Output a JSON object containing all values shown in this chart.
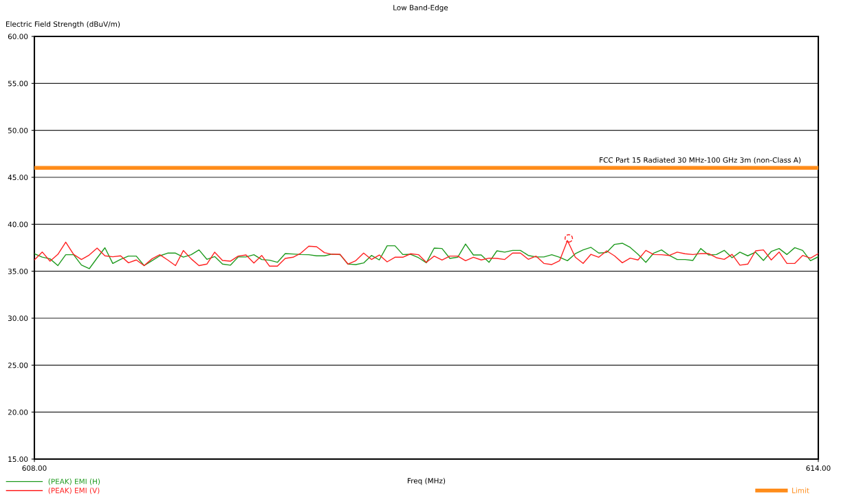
{
  "chart_data": {
    "type": "line",
    "title": "Low Band-Edge",
    "xlabel": "Freq (MHz)",
    "ylabel": "Electric Field Strength (dBuV/m)",
    "x": [
      608.0,
      608.06,
      608.12,
      608.18,
      608.24,
      608.3,
      608.36,
      608.42,
      608.48,
      608.54,
      608.6,
      608.66,
      608.72,
      608.78,
      608.84,
      608.9,
      608.96,
      609.02,
      609.08,
      609.14,
      609.2,
      609.26,
      609.32,
      609.38,
      609.44,
      609.5,
      609.56,
      609.62,
      609.68,
      609.74,
      609.8,
      609.86,
      609.92,
      609.98,
      610.04,
      610.1,
      610.16,
      610.22,
      610.28,
      610.34,
      610.4,
      610.46,
      610.52,
      610.58,
      610.64,
      610.7,
      610.76,
      610.82,
      610.88,
      610.94,
      611.0,
      611.06,
      611.12,
      611.18,
      611.24,
      611.3,
      611.36,
      611.42,
      611.48,
      611.54,
      611.6,
      611.66,
      611.72,
      611.78,
      611.84,
      611.9,
      611.96,
      612.02,
      612.08,
      612.14,
      612.2,
      612.26,
      612.32,
      612.38,
      612.44,
      612.5,
      612.56,
      612.62,
      612.68,
      612.74,
      612.8,
      612.86,
      612.92,
      612.98,
      613.04,
      613.1,
      613.16,
      613.22,
      613.28,
      613.34,
      613.4,
      613.46,
      613.52,
      613.58,
      613.64,
      613.7,
      613.76,
      613.82,
      613.88,
      613.94,
      614.0
    ],
    "series": [
      {
        "name": "(PEAK) EMI (H)",
        "color": "#1e9a1e",
        "values": [
          36.86,
          36.5,
          36.32,
          35.6,
          36.76,
          36.76,
          35.66,
          35.27,
          36.4,
          37.5,
          35.83,
          36.27,
          36.61,
          36.61,
          35.6,
          36.12,
          36.64,
          36.93,
          36.93,
          36.5,
          36.76,
          37.27,
          36.27,
          36.56,
          35.76,
          35.64,
          36.52,
          36.52,
          36.76,
          36.25,
          36.17,
          35.95,
          36.88,
          36.83,
          36.78,
          36.76,
          36.64,
          36.64,
          36.83,
          36.76,
          35.76,
          35.71,
          35.88,
          36.68,
          36.2,
          37.71,
          37.71,
          36.78,
          36.8,
          36.44,
          35.9,
          37.46,
          37.42,
          36.37,
          36.49,
          37.9,
          36.73,
          36.73,
          35.95,
          37.17,
          37.03,
          37.22,
          37.22,
          36.68,
          36.52,
          36.52,
          36.76,
          36.49,
          36.12,
          36.86,
          37.27,
          37.54,
          36.93,
          37.0,
          37.86,
          37.98,
          37.54,
          36.8,
          35.95,
          36.93,
          37.27,
          36.68,
          36.25,
          36.25,
          36.15,
          37.42,
          36.73,
          36.78,
          37.22,
          36.44,
          37.03,
          36.64,
          37.03,
          36.15,
          37.1,
          37.42,
          36.78,
          37.51,
          37.22,
          36.12,
          36.54
        ]
      },
      {
        "name": "(PEAK) EMI (V)",
        "color": "#ff2020",
        "values": [
          36.2,
          37.05,
          36.07,
          36.8,
          38.1,
          36.8,
          36.25,
          36.73,
          37.46,
          36.64,
          36.54,
          36.64,
          35.9,
          36.2,
          35.6,
          36.32,
          36.76,
          36.2,
          35.6,
          37.2,
          36.32,
          35.6,
          35.76,
          37.03,
          36.15,
          36.07,
          36.61,
          36.73,
          35.88,
          36.68,
          35.54,
          35.54,
          36.37,
          36.49,
          36.93,
          37.66,
          37.61,
          36.98,
          36.8,
          36.8,
          35.76,
          36.12,
          36.93,
          36.25,
          36.73,
          36.0,
          36.49,
          36.49,
          36.86,
          36.76,
          35.95,
          36.61,
          36.2,
          36.61,
          36.61,
          36.12,
          36.49,
          36.2,
          36.39,
          36.37,
          36.25,
          36.93,
          36.93,
          36.27,
          36.61,
          35.83,
          35.71,
          36.12,
          38.27,
          36.49,
          35.83,
          36.8,
          36.49,
          37.17,
          36.64,
          35.9,
          36.39,
          36.2,
          37.22,
          36.78,
          36.76,
          36.68,
          37.03,
          36.86,
          36.78,
          36.88,
          36.88,
          36.44,
          36.27,
          36.8,
          35.64,
          35.76,
          37.17,
          37.27,
          36.2,
          37.05,
          35.83,
          35.83,
          36.68,
          36.39,
          36.88
        ]
      },
      {
        "type": "scatter",
        "marker": "circle",
        "color": "#ff2020",
        "x": [
          612.09
        ],
        "values": [
          38.5
        ]
      },
      {
        "name": "Limit",
        "color": "#ff8c1a",
        "x": [
          608.0,
          614.0
        ],
        "values": [
          46,
          46
        ]
      }
    ],
    "annotations": [
      {
        "text": "FCC Part 15 Radiated 30 MHz-100 GHz 3m (non-Class A)",
        "x": 614.0,
        "y": 46
      }
    ],
    "xlim": [
      608,
      614
    ],
    "xticks": [
      {
        "value": 608,
        "label": "608.00"
      },
      {
        "value": 614,
        "label": "614.00"
      }
    ],
    "ylim": [
      15,
      60
    ],
    "yticks": [
      {
        "value": 15,
        "label": "15.00"
      },
      {
        "value": 20,
        "label": "20.00"
      },
      {
        "value": 25,
        "label": "25.00"
      },
      {
        "value": 30,
        "label": "30.00"
      },
      {
        "value": 35,
        "label": "35.00"
      },
      {
        "value": 40,
        "label": "40.00"
      },
      {
        "value": 45,
        "label": "45.00"
      },
      {
        "value": 50,
        "label": "50.00"
      },
      {
        "value": 55,
        "label": "55.00"
      },
      {
        "value": 60,
        "label": "60.00"
      }
    ],
    "grid": "y",
    "legend": "bottom",
    "marker": "none"
  }
}
